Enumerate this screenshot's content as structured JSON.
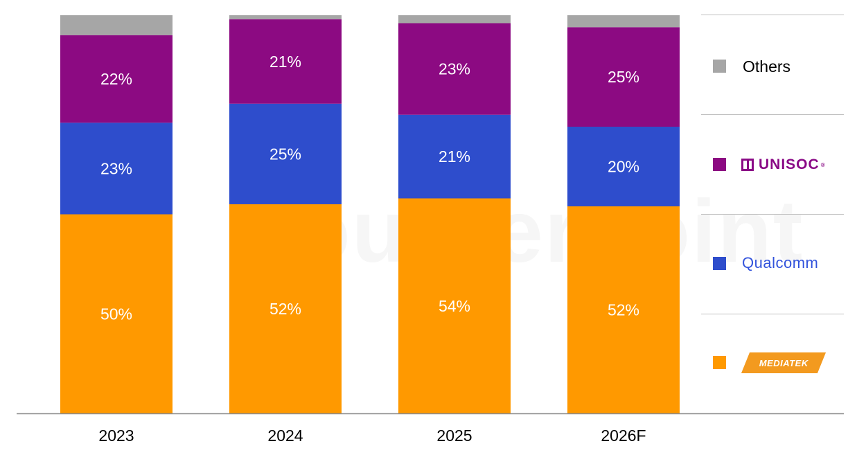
{
  "chart_data": {
    "type": "bar",
    "stacked": true,
    "normalized": true,
    "categories": [
      "2023",
      "2024",
      "2025",
      "2026F"
    ],
    "series": [
      {
        "name": "MediaTek",
        "color": "#ff9900",
        "values": [
          50,
          52,
          54,
          52
        ],
        "labels": [
          "50%",
          "52%",
          "54%",
          "52%"
        ]
      },
      {
        "name": "Qualcomm",
        "color": "#2e4dcc",
        "values": [
          23,
          25,
          21,
          20
        ],
        "labels": [
          "23%",
          "25%",
          "21%",
          "20%"
        ]
      },
      {
        "name": "UNISOC",
        "color": "#8c0a82",
        "values": [
          22,
          21,
          23,
          25
        ],
        "labels": [
          "22%",
          "21%",
          "23%",
          "25%"
        ]
      },
      {
        "name": "Others",
        "color": "#a6a6a6",
        "values": [
          5,
          1,
          2,
          3
        ],
        "labels": []
      }
    ],
    "ylim": [
      0,
      100
    ],
    "grid": false,
    "legend_position": "right",
    "title": "",
    "xlabel": "",
    "ylabel": ""
  },
  "legend": {
    "others_label": "Others",
    "unisoc_logo_text": "UNISOC",
    "unisoc_logo_mark": "®",
    "qualcomm_logo_text": "Qualcomm",
    "mediatek_logo_text": "MEDIATEK"
  },
  "watermark": {
    "text": "Counterpoint"
  }
}
